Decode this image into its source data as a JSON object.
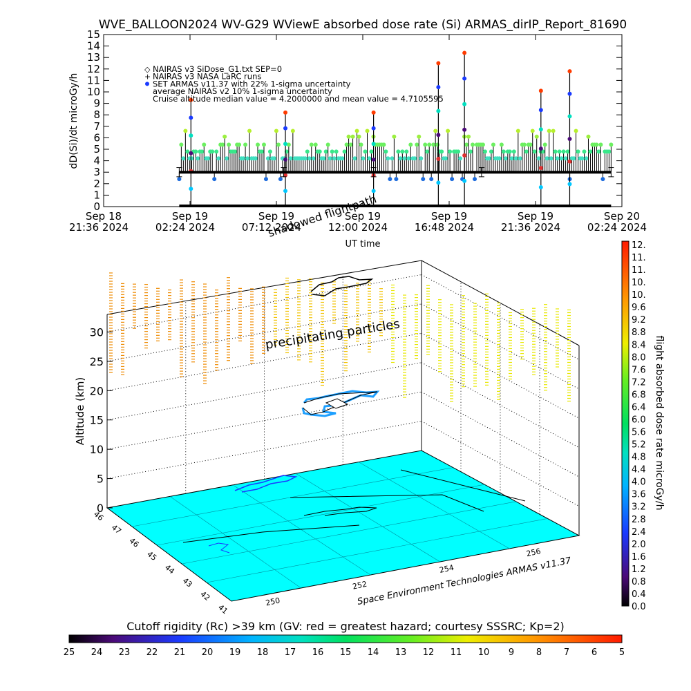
{
  "chart_data": [
    {
      "type": "scatter",
      "title": "WVE_BALLOON2024 WV-G29 WViewE absorbed dose rate (Si) ARMAS_dirIP_Report_81690",
      "ylabel": "dD(Si)/dt microGy/h",
      "xlabel": "UT time",
      "ylim": [
        0,
        15
      ],
      "yticks": [
        0,
        1,
        2,
        3,
        4,
        5,
        6,
        7,
        8,
        9,
        10,
        11,
        12,
        13,
        14,
        15
      ],
      "x_range": [
        "Sep 18 21:36 2024",
        "Sep 20 02:24 2024"
      ],
      "xticks": [
        {
          "date": "Sep 18",
          "time": "21:36 2024"
        },
        {
          "date": "Sep 19",
          "time": "02:24 2024"
        },
        {
          "date": "Sep 19",
          "time": "07:12 2024"
        },
        {
          "date": "Sep 19",
          "time": "12:00 2024"
        },
        {
          "date": "Sep 19",
          "time": "16:48 2024"
        },
        {
          "date": "Sep 19",
          "time": "21:36 2024"
        },
        {
          "date": "Sep 20",
          "time": "02:24 2024"
        }
      ],
      "legend": [
        {
          "symbol": "◇",
          "text": "NAIRAS v3 SiDose_G1.txt SEP=0"
        },
        {
          "symbol": "+",
          "text": "NAIRAS v3 NASA LaRC runs"
        },
        {
          "symbol": "●",
          "text": "SET ARMAS v11.37 with 22% 1-sigma uncertainty"
        },
        {
          "symbol": "",
          "text": "average NAIRAS v2 10% 1-sigma uncertainty"
        },
        {
          "symbol": "",
          "text": "Cruise altitude median value = 4.2000000 and mean value = 4.7105595"
        }
      ],
      "legend_position": "top-left",
      "annotations": [
        "shadowed flightpath"
      ],
      "series": [
        {
          "marker": "dots",
          "description_levels": [
            2.4,
            3.0,
            4.2,
            4.8,
            5.4,
            6.1,
            6.6
          ],
          "x_start_hours": 0,
          "x_end_hours": 28.8,
          "baseline_value": 3.0,
          "zero_band_value": 0.0,
          "spikes": [
            {
              "t_hours": 4.85,
              "value": 9.3
            },
            {
              "t_hours": 10.1,
              "value": 8.2
            },
            {
              "t_hours": 15.0,
              "value": 8.2
            },
            {
              "t_hours": 18.6,
              "value": 12.5
            },
            {
              "t_hours": 20.05,
              "value": 13.4
            },
            {
              "t_hours": 24.3,
              "value": 10.1
            },
            {
              "t_hours": 25.9,
              "value": 11.8
            }
          ]
        }
      ]
    },
    {
      "type": "scatter3d",
      "zlabel": "Altitude (km)",
      "zticks": [
        0,
        5,
        10,
        15,
        20,
        25,
        30
      ],
      "lat_ticks": [
        "46",
        "47",
        "46",
        "45",
        "44",
        "43",
        "42",
        "41"
      ],
      "lon_ticks": [
        "250",
        "252",
        "254",
        "256"
      ],
      "annotations": [
        "precipitating particles"
      ],
      "credit": "Space Environment Technologies ARMAS v11.37",
      "colorbar": {
        "label": "flight absorbed dose rate microGy/h",
        "ticks": [
          "12.",
          "11.",
          "11.",
          "10.",
          "10.",
          "9.6",
          "9.2",
          "8.8",
          "8.4",
          "8.0",
          "7.6",
          "7.2",
          "6.8",
          "6.4",
          "6.0",
          "5.6",
          "5.2",
          "4.8",
          "4.4",
          "4.0",
          "3.6",
          "3.2",
          "2.8",
          "2.4",
          "2.0",
          "1.6",
          "1.2",
          "0.8",
          "0.4",
          "0.0"
        ]
      }
    },
    {
      "type": "colorbar",
      "title": "Cutoff rigidity (Rc) >39 km (GV: red = greatest hazard; courtesy SSSRC; Kp=2)",
      "ticks": [
        "25",
        "24",
        "23",
        "22",
        "21",
        "20",
        "19",
        "18",
        "17",
        "16",
        "15",
        "14",
        "13",
        "12",
        "11",
        "10",
        "9",
        "8",
        "7",
        "6",
        "5"
      ]
    }
  ]
}
